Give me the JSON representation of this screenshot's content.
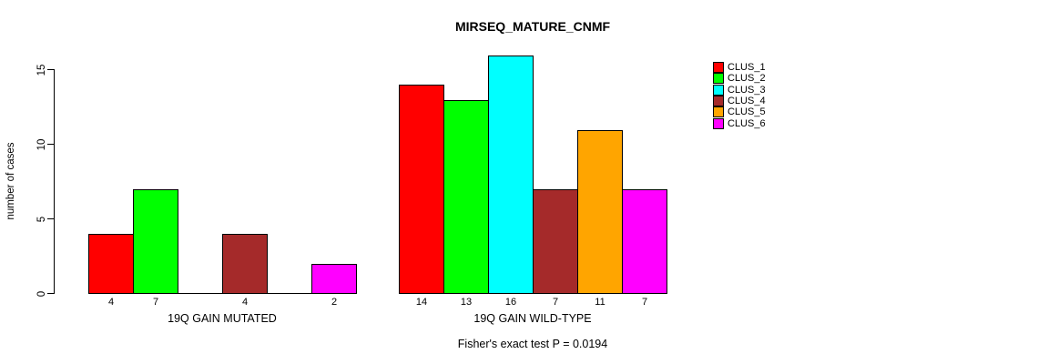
{
  "title": "MIRSEQ_MATURE_CNMF",
  "y_axis_label": "number of cases",
  "footer_note": "Fisher's exact test P = 0.0194",
  "chart_data": {
    "type": "bar",
    "title": "MIRSEQ_MATURE_CNMF",
    "ylabel": "number of cases",
    "xlabel": "",
    "yticks": [
      0,
      5,
      10,
      15
    ],
    "ylim": [
      0,
      16
    ],
    "grid": false,
    "legend_position": "right",
    "series": [
      {
        "name": "CLUS_1",
        "color": "#FF0000"
      },
      {
        "name": "CLUS_2",
        "color": "#00FF00"
      },
      {
        "name": "CLUS_3",
        "color": "#00FFFF"
      },
      {
        "name": "CLUS_4",
        "color": "#A52A2A"
      },
      {
        "name": "CLUS_5",
        "color": "#FFA500"
      },
      {
        "name": "CLUS_6",
        "color": "#FF00FF"
      }
    ],
    "groups": [
      {
        "label": "19Q GAIN MUTATED",
        "values": [
          4,
          7,
          0,
          4,
          0,
          2
        ]
      },
      {
        "label": "19Q GAIN WILD-TYPE",
        "values": [
          14,
          13,
          16,
          7,
          11,
          7
        ]
      }
    ],
    "annotation": "Fisher's exact test P = 0.0194"
  }
}
